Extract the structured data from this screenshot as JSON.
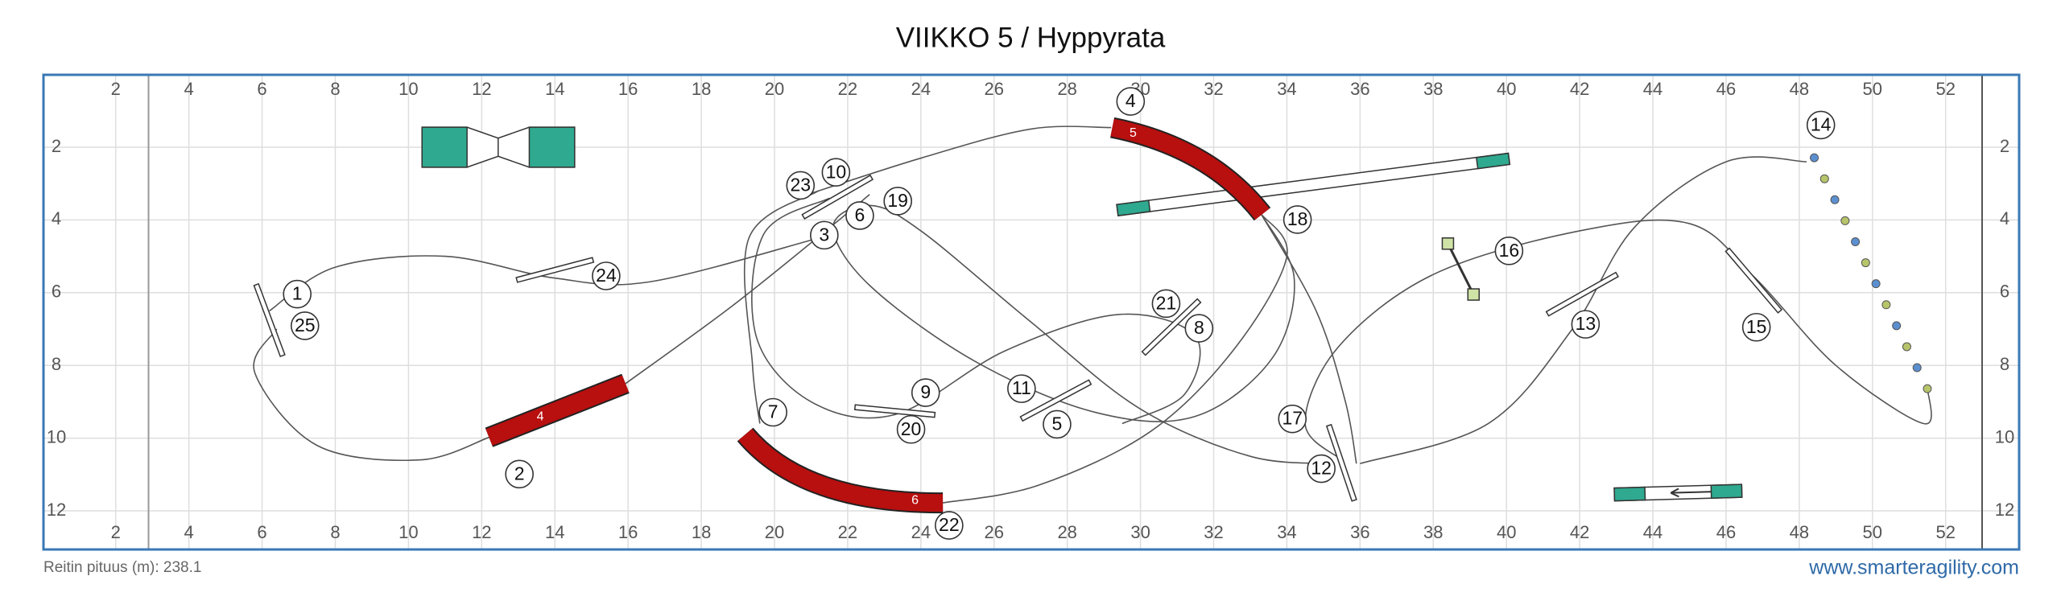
{
  "header": {
    "title": "VIIKKO 5 / Hyppyrata"
  },
  "field": {
    "xticks": [
      2,
      4,
      6,
      8,
      10,
      12,
      14,
      16,
      18,
      20,
      22,
      24,
      26,
      28,
      30,
      32,
      34,
      36,
      38,
      40,
      42,
      44,
      46,
      48,
      50,
      52
    ],
    "yticks": [
      2,
      4,
      6,
      8,
      10,
      12
    ]
  },
  "markers": [
    "1",
    "2",
    "3",
    "4",
    "5",
    "6",
    "7",
    "8",
    "9",
    "10",
    "11",
    "12",
    "13",
    "14",
    "15",
    "16",
    "17",
    "18",
    "19",
    "20",
    "21",
    "22",
    "23",
    "24",
    "25"
  ],
  "tunnels": [
    "4",
    "5",
    "6"
  ],
  "footer": {
    "route_length": "Reitin pituus (m): 238.1",
    "site": "www.smarteragility.com"
  }
}
